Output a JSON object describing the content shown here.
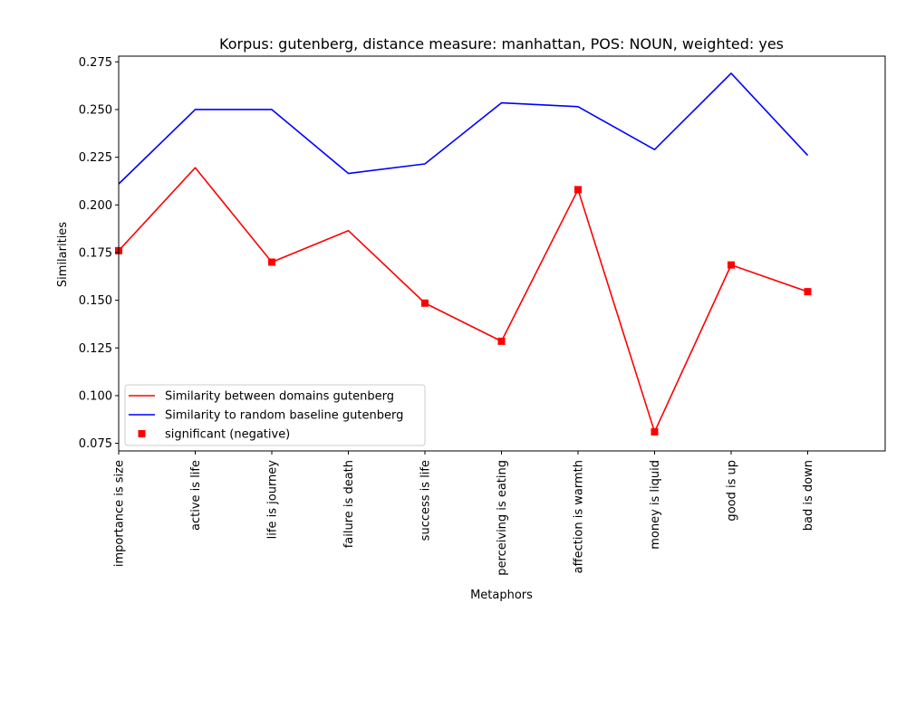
{
  "chart_data": {
    "type": "line",
    "title": "Korpus: gutenberg, distance measure: manhattan, POS: NOUN, weighted: yes",
    "xlabel": "Metaphors",
    "ylabel": "Similarities",
    "categories": [
      "importance is size",
      "active is life",
      "life is journey",
      "failure is death",
      "success is life",
      "perceiving is eating",
      "affection is warmth",
      "money is liquid",
      "good is up",
      "bad is down"
    ],
    "ylim": [
      0.071,
      0.278
    ],
    "yticks": [
      "0.075",
      "0.100",
      "0.125",
      "0.150",
      "0.175",
      "0.200",
      "0.225",
      "0.250",
      "0.275"
    ],
    "grid": false,
    "legend_position": "lower left",
    "series": [
      {
        "name": "Similarity between domains gutenberg",
        "kind": "line",
        "color": "#ff0000",
        "values": [
          0.176,
          0.2195,
          0.17,
          0.1865,
          0.1485,
          0.1285,
          0.208,
          0.081,
          0.1685,
          0.1545
        ]
      },
      {
        "name": "Similarity to random baseline gutenberg",
        "kind": "line",
        "color": "#0000ff",
        "values": [
          0.211,
          0.25,
          0.25,
          0.2165,
          0.2215,
          0.2535,
          0.2515,
          0.229,
          0.269,
          0.226
        ]
      },
      {
        "name": "significant (negative)",
        "kind": "markers",
        "marker": "square",
        "color": "#ff0000",
        "values": [
          0.176,
          null,
          0.17,
          null,
          0.1485,
          0.1285,
          0.208,
          0.081,
          0.1685,
          0.1545
        ]
      }
    ]
  }
}
